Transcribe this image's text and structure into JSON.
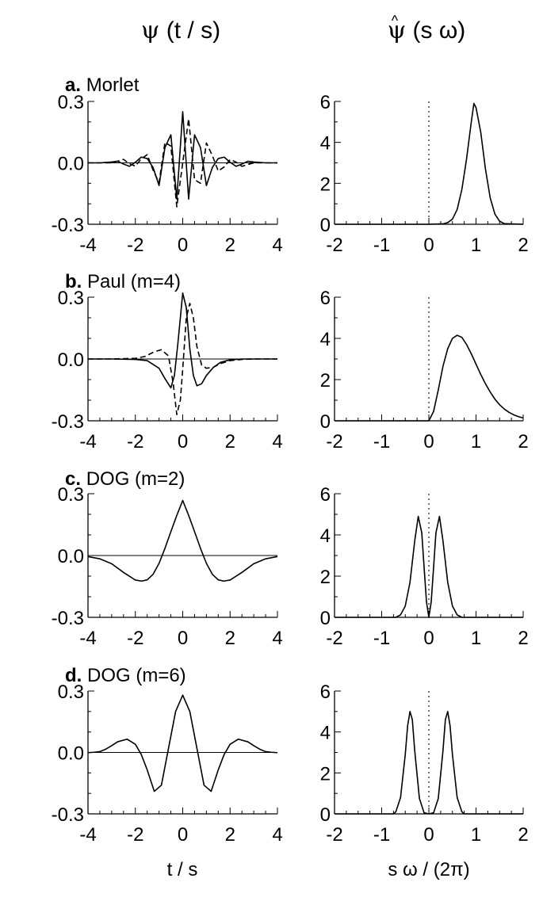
{
  "header": {
    "left_title_psi": "ψ",
    "left_title_rest": " (t / s)",
    "right_title_hat": "^",
    "right_title_psi": "ψ",
    "right_title_rest": " (s ω)"
  },
  "footer": {
    "left_xlabel": "t / s",
    "right_xlabel": "s ω / (2π)"
  },
  "panels": [
    {
      "letter": "a.",
      "name": "Morlet"
    },
    {
      "letter": "b.",
      "name": "Paul (m=4)"
    },
    {
      "letter": "c.",
      "name": "DOG (m=2)"
    },
    {
      "letter": "d.",
      "name": "DOG (m=6)"
    }
  ],
  "chart_data": [
    {
      "type": "line",
      "panel": "a",
      "domain": "time",
      "xlim": [
        -4,
        4
      ],
      "ylim": [
        -0.3,
        0.3
      ],
      "xticks": [
        -4,
        -2,
        0,
        2,
        4
      ],
      "xtick_labels": [
        "-4",
        "-2",
        "0",
        "2",
        "4"
      ],
      "yticks": [
        -0.3,
        0.0,
        0.3
      ],
      "ytick_labels": [
        "-0.3",
        "0.0",
        "0.3"
      ],
      "zero_line": true,
      "series": [
        {
          "style": "solid",
          "x": [
            -4,
            -3.5,
            -3,
            -2.75,
            -2.5,
            -2.25,
            -2,
            -1.75,
            -1.5,
            -1.25,
            -1,
            -0.75,
            -0.5,
            -0.25,
            0,
            0.25,
            0.5,
            0.75,
            1,
            1.25,
            1.5,
            1.75,
            2,
            2.25,
            2.5,
            2.75,
            3,
            3.5,
            4
          ],
          "y": [
            0,
            0,
            0.004,
            0.008,
            -0.006,
            -0.017,
            0.003,
            0.028,
            0.021,
            -0.023,
            -0.111,
            0.075,
            0.137,
            -0.177,
            0.25,
            -0.177,
            0.137,
            0.075,
            -0.111,
            -0.023,
            0.021,
            0.028,
            0.003,
            -0.017,
            -0.006,
            0.008,
            0.004,
            0,
            0
          ]
        },
        {
          "style": "dashed",
          "x": [
            -4,
            -3.5,
            -3,
            -2.75,
            -2.5,
            -2.25,
            -2,
            -1.75,
            -1.5,
            -1.25,
            -1,
            -0.75,
            -0.5,
            -0.25,
            0,
            0.25,
            0.5,
            0.75,
            1,
            1.25,
            1.5,
            1.75,
            2,
            2.25,
            2.5,
            2.75,
            3,
            3.5,
            4
          ],
          "y": [
            0,
            0,
            0,
            0.008,
            0.017,
            -0.004,
            -0.016,
            0.02,
            0.04,
            -0.036,
            -0.097,
            0.1,
            0.082,
            -0.215,
            0,
            0.215,
            -0.082,
            -0.1,
            0.097,
            0.036,
            -0.04,
            -0.02,
            0.016,
            0.004,
            -0.017,
            -0.008,
            0,
            0,
            0
          ]
        }
      ]
    },
    {
      "type": "line",
      "panel": "a",
      "domain": "frequency",
      "xlim": [
        -2,
        2
      ],
      "ylim": [
        0,
        6
      ],
      "xticks": [
        -2,
        -1,
        0,
        1,
        2
      ],
      "xtick_labels": [
        "-2",
        "-1",
        "0",
        "1",
        "2"
      ],
      "yticks": [
        0,
        2,
        4,
        6
      ],
      "ytick_labels": [
        "0",
        "2",
        "4",
        "6"
      ],
      "dotted_zero": true,
      "series": [
        {
          "style": "solid",
          "x": [
            -2,
            0,
            0.3,
            0.4,
            0.5,
            0.6,
            0.7,
            0.8,
            0.9,
            0.955,
            1.0,
            1.1,
            1.2,
            1.3,
            1.4,
            1.5,
            1.6,
            2
          ],
          "y": [
            0,
            0,
            0.02,
            0.08,
            0.25,
            0.72,
            1.7,
            3.2,
            5.0,
            5.9,
            5.7,
            4.5,
            2.7,
            1.3,
            0.5,
            0.15,
            0.03,
            0
          ]
        }
      ]
    },
    {
      "type": "line",
      "panel": "b",
      "domain": "time",
      "xlim": [
        -4,
        4
      ],
      "ylim": [
        -0.3,
        0.3
      ],
      "xticks": [
        -4,
        -2,
        0,
        2,
        4
      ],
      "xtick_labels": [
        "-4",
        "-2",
        "0",
        "2",
        "4"
      ],
      "yticks": [
        -0.3,
        0.0,
        0.3
      ],
      "ytick_labels": [
        "-0.3",
        "0.0",
        "0.3"
      ],
      "zero_line": true,
      "series": [
        {
          "style": "solid",
          "x": [
            -4,
            -3,
            -2,
            -1.5,
            -1,
            -0.75,
            -0.5,
            -0.35,
            -0.2,
            0,
            0.15,
            0.3,
            0.45,
            0.6,
            0.8,
            1,
            1.3,
            1.6,
            2,
            2.5,
            3,
            4
          ],
          "y": [
            0,
            0,
            -0.002,
            -0.008,
            -0.045,
            -0.095,
            -0.14,
            -0.08,
            0.08,
            0.32,
            0.25,
            0.05,
            -0.08,
            -0.13,
            -0.12,
            -0.08,
            -0.04,
            -0.016,
            -0.004,
            0,
            0,
            0
          ]
        },
        {
          "style": "dashed",
          "x": [
            -4,
            -3,
            -2,
            -1.6,
            -1.2,
            -0.9,
            -0.6,
            -0.4,
            -0.25,
            -0.1,
            0,
            0.15,
            0.3,
            0.45,
            0.6,
            0.8,
            1,
            1.3,
            1.6,
            2,
            2.5,
            3,
            4
          ],
          "y": [
            0,
            0,
            0.003,
            0.012,
            0.035,
            0.045,
            0.015,
            -0.12,
            -0.27,
            -0.2,
            -0.05,
            0.2,
            0.27,
            0.2,
            0.06,
            -0.03,
            -0.045,
            -0.04,
            -0.022,
            -0.008,
            -0.002,
            0,
            0
          ]
        }
      ]
    },
    {
      "type": "line",
      "panel": "b",
      "domain": "frequency",
      "xlim": [
        -2,
        2
      ],
      "ylim": [
        0,
        6
      ],
      "xticks": [
        -2,
        -1,
        0,
        1,
        2
      ],
      "xtick_labels": [
        "-2",
        "-1",
        "0",
        "1",
        "2"
      ],
      "yticks": [
        0,
        2,
        4,
        6
      ],
      "ytick_labels": [
        "0",
        "2",
        "4",
        "6"
      ],
      "dotted_zero": true,
      "series": [
        {
          "style": "solid",
          "x": [
            -2,
            0,
            0.1,
            0.2,
            0.3,
            0.4,
            0.5,
            0.6,
            0.7,
            0.8,
            0.9,
            1.0,
            1.1,
            1.2,
            1.3,
            1.4,
            1.5,
            1.6,
            1.7,
            1.8,
            1.9,
            2
          ],
          "y": [
            0,
            0,
            0.45,
            1.5,
            2.65,
            3.5,
            4.0,
            4.15,
            4.05,
            3.7,
            3.25,
            2.75,
            2.25,
            1.8,
            1.4,
            1.05,
            0.78,
            0.57,
            0.41,
            0.29,
            0.2,
            0.14
          ]
        }
      ]
    },
    {
      "type": "line",
      "panel": "c",
      "domain": "time",
      "xlim": [
        -4,
        4
      ],
      "ylim": [
        -0.3,
        0.3
      ],
      "xticks": [
        -4,
        -2,
        0,
        2,
        4
      ],
      "xtick_labels": [
        "-4",
        "-2",
        "0",
        "2",
        "4"
      ],
      "yticks": [
        -0.3,
        0.0,
        0.3
      ],
      "ytick_labels": [
        "-0.3",
        "0.0",
        "0.3"
      ],
      "zero_line": true,
      "series": [
        {
          "style": "solid",
          "x": [
            -4,
            -3.5,
            -3,
            -2.5,
            -2,
            -1.73,
            -1.5,
            -1.25,
            -1,
            -0.75,
            -0.5,
            -0.25,
            0,
            0.25,
            0.5,
            0.75,
            1,
            1.25,
            1.5,
            1.73,
            2,
            2.5,
            3,
            3.5,
            4
          ],
          "y": [
            -0.005,
            -0.016,
            -0.04,
            -0.082,
            -0.119,
            -0.124,
            -0.118,
            -0.091,
            -0.038,
            0.035,
            0.116,
            0.195,
            0.267,
            0.195,
            0.116,
            0.035,
            -0.038,
            -0.091,
            -0.118,
            -0.124,
            -0.119,
            -0.082,
            -0.04,
            -0.016,
            -0.005
          ]
        }
      ]
    },
    {
      "type": "line",
      "panel": "c",
      "domain": "frequency",
      "xlim": [
        -2,
        2
      ],
      "ylim": [
        0,
        6
      ],
      "xticks": [
        -2,
        -1,
        0,
        1,
        2
      ],
      "xtick_labels": [
        "-2",
        "-1",
        "0",
        "1",
        "2"
      ],
      "yticks": [
        0,
        2,
        4,
        6
      ],
      "ytick_labels": [
        "0",
        "2",
        "4",
        "6"
      ],
      "dotted_zero": true,
      "series": [
        {
          "style": "solid",
          "x": [
            -2,
            -0.7,
            -0.6,
            -0.5,
            -0.4,
            -0.3,
            -0.225,
            -0.15,
            -0.1,
            -0.05,
            0,
            0.05,
            0.1,
            0.15,
            0.225,
            0.3,
            0.4,
            0.5,
            0.6,
            0.7,
            2
          ],
          "y": [
            0,
            0,
            0.12,
            0.55,
            1.7,
            3.7,
            4.9,
            4.1,
            2.4,
            0.75,
            0,
            0.75,
            2.4,
            4.1,
            4.9,
            3.7,
            1.7,
            0.55,
            0.12,
            0,
            0
          ]
        }
      ]
    },
    {
      "type": "line",
      "panel": "d",
      "domain": "time",
      "xlim": [
        -4,
        4
      ],
      "ylim": [
        -0.3,
        0.3
      ],
      "xticks": [
        -4,
        -2,
        0,
        2,
        4
      ],
      "xtick_labels": [
        "-4",
        "-2",
        "0",
        "2",
        "4"
      ],
      "yticks": [
        -0.3,
        0.0,
        0.3
      ],
      "ytick_labels": [
        "-0.3",
        "0.0",
        "0.3"
      ],
      "zero_line": true,
      "series": [
        {
          "style": "solid",
          "x": [
            -4,
            -3.75,
            -3.5,
            -3.25,
            -3,
            -2.75,
            -2.35,
            -2,
            -1.75,
            -1.5,
            -1.2,
            -0.9,
            -0.6,
            -0.3,
            0,
            0.3,
            0.6,
            0.9,
            1.2,
            1.5,
            1.75,
            2,
            2.35,
            2.75,
            3,
            3.25,
            3.5,
            3.75,
            4
          ],
          "y": [
            -0.001,
            0.001,
            0.004,
            0.016,
            0.033,
            0.052,
            0.065,
            0.04,
            -0.01,
            -0.085,
            -0.19,
            -0.16,
            0.02,
            0.2,
            0.28,
            0.2,
            0.02,
            -0.16,
            -0.19,
            -0.085,
            -0.01,
            0.04,
            0.065,
            0.052,
            0.033,
            0.016,
            0.004,
            0.001,
            -0.001
          ]
        }
      ]
    },
    {
      "type": "line",
      "panel": "d",
      "domain": "frequency",
      "xlim": [
        -2,
        2
      ],
      "ylim": [
        0,
        6
      ],
      "xticks": [
        -2,
        -1,
        0,
        1,
        2
      ],
      "xtick_labels": [
        "-2",
        "-1",
        "0",
        "1",
        "2"
      ],
      "yticks": [
        0,
        2,
        4,
        6
      ],
      "ytick_labels": [
        "0",
        "2",
        "4",
        "6"
      ],
      "dotted_zero": true,
      "series": [
        {
          "style": "solid",
          "x": [
            -2,
            -0.75,
            -0.7,
            -0.6,
            -0.5,
            -0.45,
            -0.4,
            -0.35,
            -0.3,
            -0.2,
            -0.1,
            0,
            0.1,
            0.2,
            0.3,
            0.35,
            0.4,
            0.45,
            0.5,
            0.6,
            0.7,
            0.75,
            2
          ],
          "y": [
            0,
            0,
            0.1,
            0.8,
            2.9,
            4.3,
            5.0,
            4.6,
            3.1,
            0.75,
            0.05,
            0,
            0.05,
            0.75,
            3.1,
            4.6,
            5.0,
            4.3,
            2.9,
            0.8,
            0.1,
            0,
            0
          ]
        }
      ]
    }
  ]
}
